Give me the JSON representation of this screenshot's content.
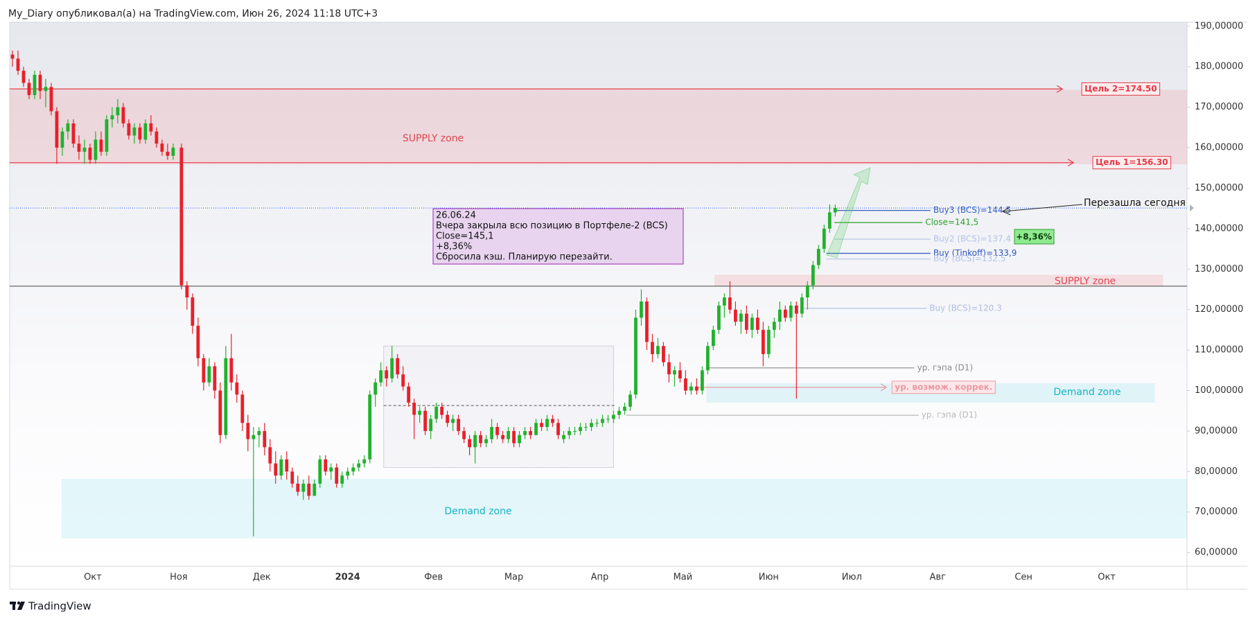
{
  "chart_data": {
    "type": "candlestick",
    "header": "My_Diary опубликовал(а) на TradingView.com, Июн 26, 2024 11:18 UTC+3",
    "brand": "TradingView",
    "up_color": "#22b12c",
    "down_color": "#e8202a",
    "xlim": [
      0,
      425
    ],
    "xticks": [
      {
        "value": 30,
        "label": "Окт"
      },
      {
        "value": 61,
        "label": "Ноя"
      },
      {
        "value": 91,
        "label": "Дек"
      },
      {
        "value": 122,
        "label": "2024"
      },
      {
        "value": 153,
        "label": "Фев"
      },
      {
        "value": 182,
        "label": "Мар"
      },
      {
        "value": 213,
        "label": "Апр"
      },
      {
        "value": 243,
        "label": "Май"
      },
      {
        "value": 274,
        "label": "Июн"
      },
      {
        "value": 304,
        "label": "Июл"
      },
      {
        "value": 335,
        "label": "Авг"
      },
      {
        "value": 366,
        "label": "Сен"
      },
      {
        "value": 396,
        "label": "Окт"
      }
    ],
    "ylim": [
      56.6,
      191.0
    ],
    "yticks": [
      {
        "value": 60,
        "label": "60,00000"
      },
      {
        "value": 70,
        "label": "70,00000"
      },
      {
        "value": 80,
        "label": "80,00000"
      },
      {
        "value": 90,
        "label": "90,00000"
      },
      {
        "value": 100,
        "label": "100,00000"
      },
      {
        "value": 110,
        "label": "110,00000"
      },
      {
        "value": 120,
        "label": "120,00000"
      },
      {
        "value": 130,
        "label": "130,00000"
      },
      {
        "value": 140,
        "label": "140,00000"
      },
      {
        "value": 150,
        "label": "150,00000"
      },
      {
        "value": 160,
        "label": "160,00000"
      },
      {
        "value": 170,
        "label": "170,00000"
      },
      {
        "value": 180,
        "label": "180,00000"
      },
      {
        "value": 190,
        "label": "190,00000"
      }
    ],
    "x": [
      1,
      3,
      5,
      7,
      9,
      11,
      13,
      15,
      17,
      19,
      21,
      23,
      25,
      27,
      29,
      31,
      33,
      35,
      37,
      39,
      41,
      43,
      45,
      47,
      49,
      51,
      53,
      55,
      57,
      59,
      62,
      64,
      66,
      68,
      70,
      72,
      74,
      76,
      78,
      80,
      82,
      84,
      86,
      88,
      90,
      92,
      94,
      96,
      98,
      100,
      102,
      104,
      106,
      108,
      110,
      112,
      114,
      116,
      118,
      120,
      122,
      124,
      126,
      128,
      130,
      132,
      134,
      136,
      138,
      140,
      142,
      144,
      146,
      148,
      150,
      152,
      154,
      156,
      158,
      160,
      162,
      164,
      166,
      168,
      170,
      172,
      174,
      176,
      178,
      180,
      182,
      184,
      186,
      188,
      190,
      192,
      194,
      196,
      198,
      200,
      202,
      204,
      206,
      208,
      210,
      212,
      214,
      216,
      218,
      220,
      222,
      224,
      226,
      228,
      230,
      232,
      234,
      236,
      238,
      240,
      242,
      244,
      246,
      248,
      250,
      252,
      254,
      256,
      258,
      260,
      262,
      264,
      266,
      268,
      270,
      272,
      274,
      276,
      278,
      280,
      282,
      284,
      286,
      288,
      290,
      292,
      294,
      296,
      298
    ],
    "open": [
      183,
      182,
      179,
      176,
      173,
      178,
      174,
      175,
      169,
      160,
      164,
      166,
      161,
      159,
      160,
      157,
      162,
      159,
      167,
      168,
      170,
      166,
      163,
      165,
      162,
      166,
      164,
      161,
      159,
      158,
      160,
      126,
      123,
      116,
      108,
      102,
      106,
      100,
      89,
      108,
      102,
      99,
      92,
      88,
      89,
      90,
      86,
      82,
      79,
      83,
      80,
      77,
      75,
      77,
      74,
      77,
      83,
      80,
      81,
      77,
      79,
      80,
      81,
      82,
      83,
      99,
      102,
      105,
      103,
      108,
      104,
      101,
      97,
      94,
      95,
      90,
      93,
      96,
      94,
      92,
      93,
      90,
      88,
      86,
      89,
      87,
      88,
      91,
      89,
      88,
      90,
      87,
      89,
      90,
      89,
      92,
      91,
      93,
      92,
      88,
      89,
      90,
      90,
      91,
      91,
      92,
      92,
      93,
      93,
      94,
      95,
      96,
      99,
      118,
      122,
      112,
      109,
      111,
      107,
      104,
      105,
      103,
      100,
      101,
      100,
      105,
      111,
      115,
      121,
      123,
      120,
      117,
      119,
      115,
      118,
      115,
      109,
      115,
      117,
      120,
      118,
      121,
      119,
      123,
      126,
      131,
      135,
      140,
      144
    ],
    "high": [
      184,
      184,
      180,
      177,
      179,
      179,
      177,
      176,
      170,
      165,
      167,
      167,
      163,
      162,
      161,
      164,
      164,
      168,
      170,
      172,
      171,
      167,
      166,
      166,
      167,
      168,
      165,
      162,
      161,
      161,
      161,
      127,
      124,
      118,
      109,
      108,
      107,
      102,
      111,
      114,
      104,
      100,
      94,
      91,
      91,
      92,
      88,
      85,
      84,
      85,
      81,
      79,
      78,
      79,
      78,
      84,
      84,
      82,
      82,
      80,
      81,
      82,
      83,
      84,
      100,
      103,
      107,
      106,
      111,
      109,
      106,
      102,
      98,
      96,
      96,
      94,
      97,
      97,
      95,
      94,
      94,
      91,
      89,
      90,
      90,
      89,
      93,
      92,
      90,
      91,
      91,
      90,
      91,
      91,
      93,
      93,
      94,
      94,
      93,
      90,
      91,
      91,
      92,
      92,
      93,
      93,
      94,
      94,
      95,
      96,
      97,
      100,
      120,
      125,
      123,
      114,
      113,
      112,
      109,
      106,
      107,
      105,
      102,
      103,
      106,
      112,
      116,
      122,
      124,
      127,
      122,
      120,
      121,
      119,
      120,
      117,
      116,
      118,
      122,
      121,
      122,
      122,
      124,
      127,
      132,
      136,
      141,
      146,
      146
    ],
    "low": [
      180,
      178,
      175,
      172,
      172,
      172,
      170,
      168,
      156,
      158,
      162,
      160,
      157,
      156,
      156,
      156,
      158,
      158,
      165,
      166,
      165,
      162,
      161,
      161,
      161,
      163,
      160,
      158,
      157,
      157,
      125,
      120,
      114,
      106,
      100,
      101,
      98,
      87,
      88,
      100,
      97,
      90,
      85,
      64,
      86,
      84,
      80,
      77,
      78,
      78,
      76,
      74,
      73,
      73,
      74,
      76,
      79,
      78,
      76,
      76,
      78,
      79,
      80,
      81,
      82,
      96,
      101,
      101,
      102,
      103,
      100,
      96,
      88,
      92,
      89,
      88,
      92,
      93,
      91,
      90,
      89,
      87,
      84,
      82,
      86,
      86,
      87,
      88,
      87,
      87,
      86,
      86,
      88,
      88,
      89,
      90,
      90,
      91,
      88,
      87,
      88,
      89,
      89,
      90,
      90,
      91,
      91,
      92,
      92,
      93,
      94,
      95,
      98,
      116,
      110,
      107,
      108,
      106,
      102,
      101,
      102,
      99,
      99,
      99,
      99,
      104,
      110,
      114,
      118,
      119,
      116,
      114,
      114,
      113,
      114,
      106,
      108,
      113,
      115,
      117,
      117,
      98,
      118,
      120,
      125,
      130,
      134,
      139,
      143
    ],
    "close": [
      182,
      179,
      176,
      173,
      178,
      174,
      175,
      169,
      160,
      164,
      166,
      161,
      159,
      160,
      157,
      162,
      159,
      167,
      168,
      170,
      166,
      163,
      165,
      162,
      166,
      164,
      161,
      159,
      158,
      160,
      126,
      123,
      116,
      108,
      102,
      106,
      100,
      89,
      108,
      102,
      99,
      92,
      88,
      89,
      90,
      86,
      82,
      79,
      83,
      80,
      77,
      75,
      77,
      74,
      77,
      83,
      80,
      81,
      77,
      79,
      80,
      81,
      82,
      83,
      99,
      102,
      105,
      103,
      108,
      104,
      101,
      97,
      94,
      95,
      90,
      93,
      96,
      94,
      92,
      93,
      90,
      88,
      86,
      89,
      87,
      88,
      91,
      89,
      88,
      90,
      87,
      89,
      90,
      89,
      92,
      91,
      93,
      92,
      89,
      89,
      90,
      90,
      91,
      91,
      92,
      92,
      93,
      93,
      94,
      95,
      96,
      99,
      118,
      122,
      112,
      109,
      111,
      107,
      104,
      105,
      103,
      100,
      101,
      100,
      105,
      111,
      115,
      121,
      123,
      120,
      117,
      119,
      115,
      118,
      115,
      109,
      115,
      117,
      120,
      118,
      121,
      119,
      123,
      126,
      131,
      135,
      140,
      144,
      145.1
    ],
    "zones": [
      {
        "label": "SUPPLY zone",
        "x": [
          0,
          425
        ],
        "y": [
          155.9,
          174.3
        ],
        "color": "rgba(242,54,69,0.12)",
        "text_color": "#e0454f"
      },
      {
        "label": "SUPPLY zone",
        "x": [
          254.4,
          416.3
        ],
        "y": [
          125.8,
          128.6
        ],
        "color": "rgba(242,54,69,0.12)",
        "text_color": "#e0454f"
      },
      {
        "label": "Demand zone",
        "x": [
          18.7,
          425
        ],
        "y": [
          63.5,
          78.2
        ],
        "color": "rgba(0,188,212,0.10)",
        "text_color": "#16b3c6"
      },
      {
        "label": "Demand zone",
        "x": [
          251.5,
          413.4
        ],
        "y": [
          97.0,
          101.8
        ],
        "color": "rgba(0,188,212,0.10)",
        "text_color": "#16b3c6"
      }
    ],
    "box": {
      "x": [
        135,
        218
      ],
      "y": [
        81,
        111
      ]
    },
    "dashed_level": {
      "value": 96.3,
      "x": [
        135,
        219
      ]
    },
    "levels": [
      {
        "label": "Цель 2=174.50",
        "value": 174.5,
        "x": [
          0,
          380
        ],
        "color": "#e53945",
        "boxed": true
      },
      {
        "label": "Цель 1=156.30",
        "value": 156.3,
        "x": [
          0,
          384
        ],
        "color": "#e53945",
        "boxed": true
      },
      {
        "label": "Buy3 (BCS)=144.5",
        "value": 144.5,
        "x": [
          297.7,
          332.4
        ],
        "color": "#3560c4",
        "boxed": false
      },
      {
        "label": "Close=141,5",
        "value": 141.5,
        "x": [
          297.7,
          329.5
        ],
        "color": "#2a9e2a",
        "boxed": false
      },
      {
        "label": "Buy2 (BCS)=137.4",
        "value": 137.4,
        "x": [
          297.7,
          332.4
        ],
        "color": "#b3c2e6",
        "boxed": false
      },
      {
        "label": "Buy (Tinkoff)=133,9",
        "value": 133.9,
        "x": [
          294.8,
          332.4
        ],
        "color": "#2f55c0",
        "boxed": false
      },
      {
        "label": "Buy (BCS)=132.5",
        "value": 132.5,
        "x": [
          294.8,
          332.4
        ],
        "color": "#b3c2e6",
        "boxed": false
      },
      {
        "label": "Buy (BCS)=120.3",
        "value": 120.3,
        "x": [
          286.2,
          331.0
        ],
        "color": "#aebde4",
        "boxed": false
      },
      {
        "label": "ур. гэпа (D1)",
        "value": 105.6,
        "x": [
          251.5,
          326.6
        ],
        "color": "#8a8a8a",
        "boxed": false
      },
      {
        "label": "ур. возмож. коррек.",
        "value": 100.8,
        "x": [
          248.6,
          316.5
        ],
        "color": "#eb9aa3",
        "boxed": true
      },
      {
        "label": "ур. гэпа (D1)",
        "value": 93.9,
        "x": [
          222.5,
          328.1
        ],
        "color": "#b8b8b8",
        "boxed": false
      }
    ],
    "note": [
      "26.06.24",
      "Вчера закрыла всю позицию в Портфеле-2 (BCS)",
      "Close=145,1",
      "+8,36%",
      "Сбросила кэш. Планирую перезайти."
    ],
    "badge": "+8,36%",
    "callout": "Перезашла сегодня"
  }
}
